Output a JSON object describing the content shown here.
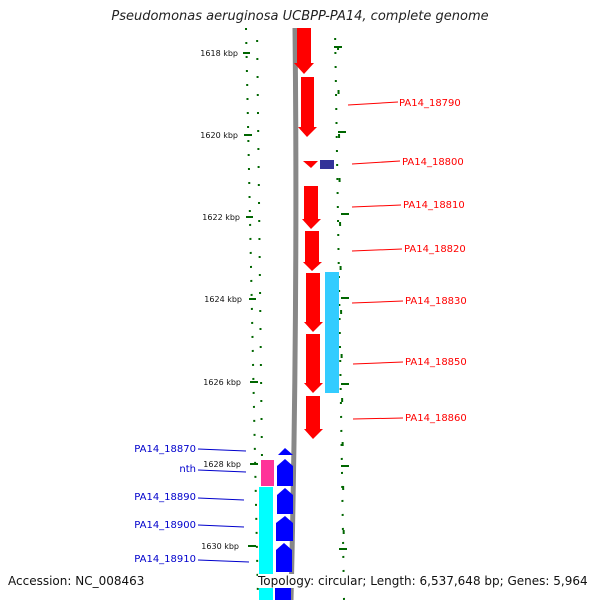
{
  "title": "Pseudomonas aeruginosa UCBPP-PA14, complete genome",
  "footer": {
    "accession": "Accession: NC_008463",
    "topology": "Topology: circular; Length: 6,537,648 bp; Genes: 5,964"
  },
  "colors": {
    "reverse_strand_gene": "#ff0000",
    "forward_strand_gene": "#0000ff",
    "forward_label": "#0000cc",
    "small_feature": "#333399",
    "cds_light_blue": "#33ccff",
    "cds_cyan": "#00ffff",
    "cds_magenta": "#ff3399",
    "tick_dot": "#006600",
    "backbone": "#888888"
  },
  "scale": {
    "unit": "kbp",
    "ticks": [
      "1618 kbp",
      "1620 kbp",
      "1622 kbp",
      "1624 kbp",
      "1626 kbp",
      "1628 kbp",
      "1630 kbp"
    ]
  },
  "genes_right": [
    {
      "label": "PA14_18790"
    },
    {
      "label": "PA14_18800"
    },
    {
      "label": "PA14_18810"
    },
    {
      "label": "PA14_18820"
    },
    {
      "label": "PA14_18830"
    },
    {
      "label": "PA14_18850"
    },
    {
      "label": "PA14_18860"
    }
  ],
  "genes_left": [
    {
      "label": "PA14_18870"
    },
    {
      "label": "nth"
    },
    {
      "label": "PA14_18890"
    },
    {
      "label": "PA14_18900"
    },
    {
      "label": "PA14_18910"
    }
  ]
}
